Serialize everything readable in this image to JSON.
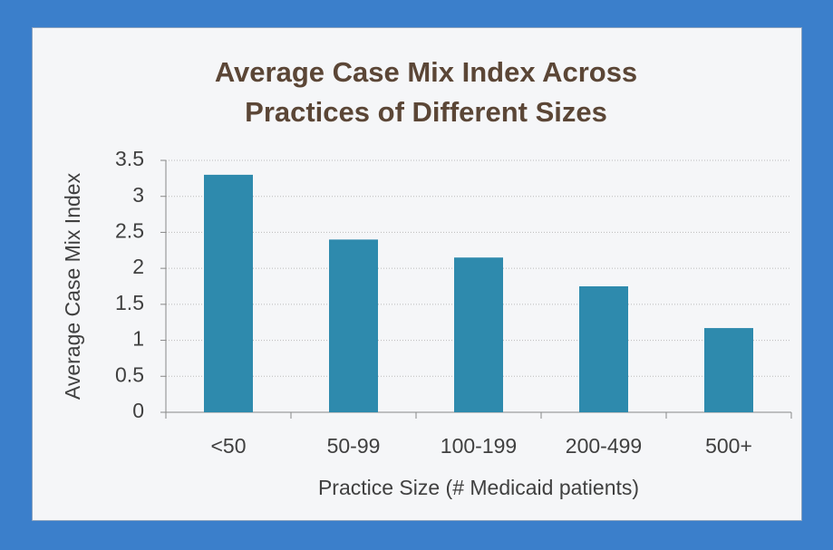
{
  "chart_data": {
    "type": "bar",
    "title": "Average Case Mix Index Across Practices of Different Sizes",
    "x_label": "Practice Size (# Medicaid patients)",
    "y_label": "Average Case Mix Index",
    "categories": [
      "<50",
      "50-99",
      "100-199",
      "200-499",
      "500+"
    ],
    "values": [
      3.3,
      2.4,
      2.15,
      1.75,
      1.17
    ],
    "color": "#2e8aad",
    "ylim": [
      0,
      3.5
    ],
    "yticks": [
      0,
      0.5,
      1,
      1.5,
      2,
      2.5,
      3,
      3.5
    ],
    "grid": true
  }
}
